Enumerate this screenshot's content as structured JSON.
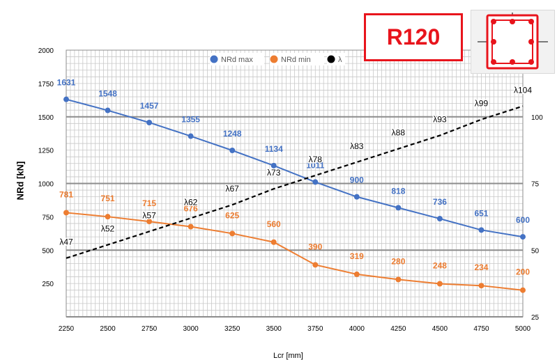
{
  "badge": {
    "text": "R120"
  },
  "chart_data": {
    "type": "line",
    "title": "",
    "xlabel": "Lcr [mm]",
    "ylabel": "NRd [kN]",
    "x": [
      2250,
      2500,
      2750,
      3000,
      3250,
      3500,
      3750,
      4000,
      4250,
      4500,
      4750,
      5000
    ],
    "xlim": [
      2250,
      5000
    ],
    "x_ticks": [
      "2250",
      "2500",
      "2750",
      "3000",
      "3250",
      "3500",
      "3750",
      "4000",
      "4250",
      "4500",
      "4750",
      "5000"
    ],
    "ylim": [
      0,
      2000
    ],
    "y_ticks": [
      "250",
      "500",
      "750",
      "1000",
      "1250",
      "1500",
      "1750",
      "2000"
    ],
    "y2lim": [
      25,
      125
    ],
    "y2_ticks": [
      "25",
      "50",
      "75",
      "100"
    ],
    "grid": true,
    "legend_position": "top-center",
    "series": [
      {
        "name": "NRd max",
        "axis": "left",
        "color": "#4472c4",
        "style": "solid",
        "marker": true,
        "values": [
          1631,
          1548,
          1457,
          1355,
          1248,
          1134,
          1011,
          900,
          818,
          736,
          651,
          600
        ],
        "labels": [
          "1631",
          "1548",
          "1457",
          "1355",
          "1248",
          "1134",
          "1011",
          "900",
          "818",
          "736",
          "651",
          "600"
        ]
      },
      {
        "name": "NRd min",
        "axis": "left",
        "color": "#ed7d31",
        "style": "solid",
        "marker": true,
        "values": [
          781,
          751,
          715,
          676,
          625,
          560,
          390,
          319,
          280,
          248,
          234,
          200
        ],
        "labels": [
          "781",
          "751",
          "715",
          "676",
          "625",
          "560",
          "390",
          "319",
          "280",
          "248",
          "234",
          "200"
        ]
      },
      {
        "name": "λ",
        "axis": "right",
        "color": "#000000",
        "style": "dashed",
        "marker": false,
        "values": [
          47,
          52,
          57,
          62,
          67,
          73,
          78,
          83,
          88,
          93,
          99,
          104
        ],
        "labels": [
          "λ47",
          "λ52",
          "λ57",
          "λ62",
          "λ67",
          "λ73",
          "λ78",
          "λ83",
          "λ88",
          "λ93",
          "λ99",
          "λ104"
        ]
      }
    ]
  }
}
